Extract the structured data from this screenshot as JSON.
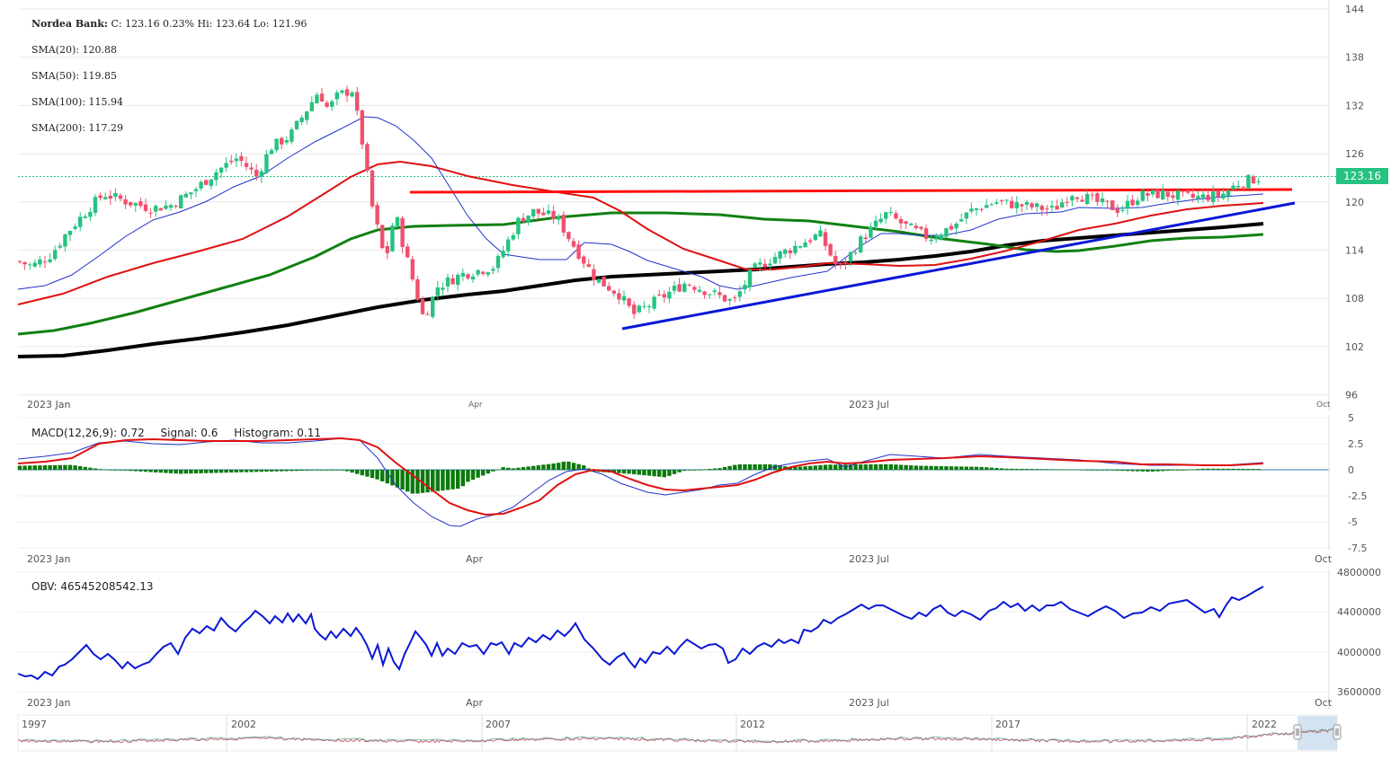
{
  "header": {
    "symbol": "Nordea Bank:",
    "quote": "C: 123.16 0.23% Hi: 123.64 Lo: 121.96"
  },
  "sma": {
    "sma20": "SMA(20): 120.88",
    "sma50": "SMA(50): 119.85",
    "sma100": "SMA(100): 115.94",
    "sma200": "SMA(200): 117.29"
  },
  "macd": {
    "label": "MACD(12,26,9): 0.72",
    "signal": "Signal: 0.6",
    "histogram": "Histogram: 0.11"
  },
  "obv": {
    "label": "OBV: 46545208542.13"
  },
  "last_price_tag": "123.16",
  "colors": {
    "up": "#26c281",
    "down": "#f0506e",
    "sma20": "#2233cc",
    "sma50": "#e01010",
    "sma100": "#128012",
    "sma200": "#000000",
    "trend_res": "#ff0000",
    "trend_sup": "#0a18d6",
    "macd_line": "#2233cc",
    "macd_signal": "#e01010",
    "macd_hist": "#0c7a0c",
    "obv_line": "#0a18d6",
    "tag_bg": "#26c281",
    "navigator_sel": "#cfe0f0"
  },
  "chart_data": [
    {
      "type": "candlestick",
      "title": "Nordea Bank",
      "x_ticks": [
        "2023 Jan",
        "Apr",
        "2023 Jul",
        "Oct"
      ],
      "y_ticks": [
        96,
        102,
        108,
        114,
        120,
        126,
        132,
        138,
        144
      ],
      "ylim": [
        96,
        144
      ],
      "last_close": 123.16,
      "change_pct": 0.23,
      "high": 123.64,
      "low": 121.96,
      "close_path": [
        {
          "x": "2023-01-02",
          "close": 112.6
        },
        {
          "x": "2023-01-05",
          "close": 112.0
        },
        {
          "x": "2023-01-09",
          "close": 113.5
        },
        {
          "x": "2023-01-12",
          "close": 116.0
        },
        {
          "x": "2023-01-17",
          "close": 119.3
        },
        {
          "x": "2023-01-20",
          "close": 121.0
        },
        {
          "x": "2023-01-25",
          "close": 120.0
        },
        {
          "x": "2023-01-30",
          "close": 119.2
        },
        {
          "x": "2023-02-03",
          "close": 119.6
        },
        {
          "x": "2023-02-08",
          "close": 121.5
        },
        {
          "x": "2023-02-13",
          "close": 124.0
        },
        {
          "x": "2023-02-17",
          "close": 125.5
        },
        {
          "x": "2023-02-21",
          "close": 123.2
        },
        {
          "x": "2023-02-24",
          "close": 126.8
        },
        {
          "x": "2023-02-28",
          "close": 128.2
        },
        {
          "x": "2023-03-03",
          "close": 131.0
        },
        {
          "x": "2023-03-06",
          "close": 133.8
        },
        {
          "x": "2023-03-08",
          "close": 131.5
        },
        {
          "x": "2023-03-10",
          "close": 133.2
        },
        {
          "x": "2023-03-13",
          "close": 134.0
        },
        {
          "x": "2023-03-15",
          "close": 128.0
        },
        {
          "x": "2023-03-17",
          "close": 120.0
        },
        {
          "x": "2023-03-20",
          "close": 112.5
        },
        {
          "x": "2023-03-22",
          "close": 118.8
        },
        {
          "x": "2023-03-24",
          "close": 114.0
        },
        {
          "x": "2023-03-28",
          "close": 105.5
        },
        {
          "x": "2023-03-31",
          "close": 109.5
        },
        {
          "x": "2023-04-05",
          "close": 111.0
        },
        {
          "x": "2023-04-12",
          "close": 112.0
        },
        {
          "x": "2023-04-17",
          "close": 117.8
        },
        {
          "x": "2023-04-20",
          "close": 118.8
        },
        {
          "x": "2023-04-25",
          "close": 118.0
        },
        {
          "x": "2023-04-28",
          "close": 115.0
        },
        {
          "x": "2023-05-03",
          "close": 110.5
        },
        {
          "x": "2023-05-08",
          "close": 108.5
        },
        {
          "x": "2023-05-11",
          "close": 106.0
        },
        {
          "x": "2023-05-16",
          "close": 107.8
        },
        {
          "x": "2023-05-22",
          "close": 110.0
        },
        {
          "x": "2023-05-26",
          "close": 109.0
        },
        {
          "x": "2023-06-01",
          "close": 107.5
        },
        {
          "x": "2023-06-05",
          "close": 111.5
        },
        {
          "x": "2023-06-09",
          "close": 113.0
        },
        {
          "x": "2023-06-14",
          "close": 114.5
        },
        {
          "x": "2023-06-19",
          "close": 116.0
        },
        {
          "x": "2023-06-23",
          "close": 111.5
        },
        {
          "x": "2023-06-28",
          "close": 115.5
        },
        {
          "x": "2023-07-03",
          "close": 118.5
        },
        {
          "x": "2023-07-07",
          "close": 117.0
        },
        {
          "x": "2023-07-12",
          "close": 115.5
        },
        {
          "x": "2023-07-17",
          "close": 117.0
        },
        {
          "x": "2023-07-21",
          "close": 119.0
        },
        {
          "x": "2023-07-26",
          "close": 120.0
        },
        {
          "x": "2023-08-01",
          "close": 119.5
        },
        {
          "x": "2023-08-07",
          "close": 119.0
        },
        {
          "x": "2023-08-11",
          "close": 121.2
        },
        {
          "x": "2023-08-16",
          "close": 120.0
        },
        {
          "x": "2023-08-21",
          "close": 119.0
        },
        {
          "x": "2023-08-25",
          "close": 120.8
        },
        {
          "x": "2023-08-30",
          "close": 121.0
        },
        {
          "x": "2023-09-05",
          "close": 120.5
        },
        {
          "x": "2023-09-11",
          "close": 120.8
        },
        {
          "x": "2023-09-15",
          "close": 122.4
        },
        {
          "x": "2023-09-20",
          "close": 123.16
        }
      ],
      "trendlines": [
        {
          "name": "resistance",
          "from": {
            "x": "2023-03-24",
            "y": 121.2
          },
          "to": {
            "x": "2023-09-25",
            "y": 121.5
          }
        },
        {
          "name": "support",
          "from": {
            "x": "2023-05-08",
            "y": 104.0
          },
          "to": {
            "x": "2023-09-28",
            "y": 120.0
          }
        }
      ],
      "sma_last": {
        "sma20": 120.88,
        "sma50": 119.85,
        "sma100": 115.94,
        "sma200": 117.29
      }
    },
    {
      "type": "line",
      "title": "MACD(12,26,9)",
      "y_ticks": [
        5,
        2.5,
        0,
        -2.5,
        -5,
        -7.5
      ],
      "ylim": [
        -7.5,
        5
      ],
      "last": {
        "macd": 0.72,
        "signal": 0.6,
        "histogram": 0.11
      }
    },
    {
      "type": "line",
      "title": "OBV",
      "y_ticks": [
        4800000,
        4400000,
        4000000,
        3600000
      ],
      "last": 46545208542.13
    },
    {
      "type": "area",
      "title": "navigator",
      "x_ticks": [
        "1997",
        "2002",
        "2007",
        "2012",
        "2017",
        "2022"
      ]
    }
  ]
}
